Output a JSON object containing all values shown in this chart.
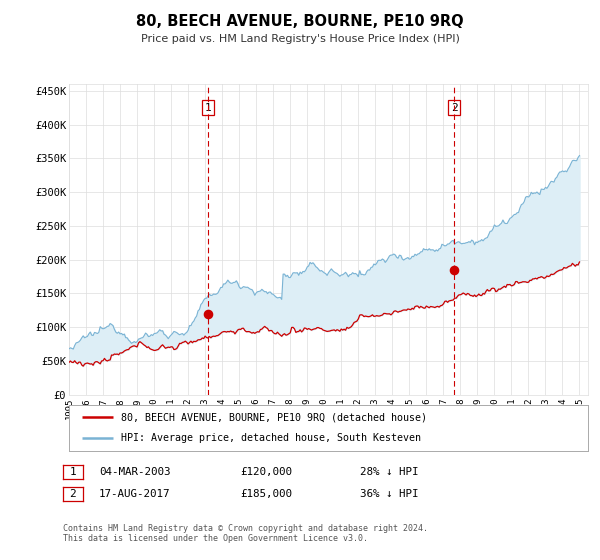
{
  "title": "80, BEECH AVENUE, BOURNE, PE10 9RQ",
  "subtitle": "Price paid vs. HM Land Registry's House Price Index (HPI)",
  "ylabel_ticks": [
    "£0",
    "£50K",
    "£100K",
    "£150K",
    "£200K",
    "£250K",
    "£300K",
    "£350K",
    "£400K",
    "£450K"
  ],
  "ytick_values": [
    0,
    50000,
    100000,
    150000,
    200000,
    250000,
    300000,
    350000,
    400000,
    450000
  ],
  "ylim": [
    0,
    460000
  ],
  "xlim_start": 1995.0,
  "xlim_end": 2025.5,
  "hpi_color": "#7ab3d4",
  "hpi_fill_color": "#ddeef6",
  "price_color": "#cc0000",
  "marker1_date": 2003.17,
  "marker1_price": 120000,
  "marker1_label": "1",
  "marker2_date": 2017.63,
  "marker2_price": 185000,
  "marker2_label": "2",
  "legend_line1": "80, BEECH AVENUE, BOURNE, PE10 9RQ (detached house)",
  "legend_line2": "HPI: Average price, detached house, South Kesteven",
  "table_row1": [
    "1",
    "04-MAR-2003",
    "£120,000",
    "28% ↓ HPI"
  ],
  "table_row2": [
    "2",
    "17-AUG-2017",
    "£185,000",
    "36% ↓ HPI"
  ],
  "footnote1": "Contains HM Land Registry data © Crown copyright and database right 2024.",
  "footnote2": "This data is licensed under the Open Government Licence v3.0.",
  "background_color": "#ffffff",
  "grid_color": "#dddddd"
}
